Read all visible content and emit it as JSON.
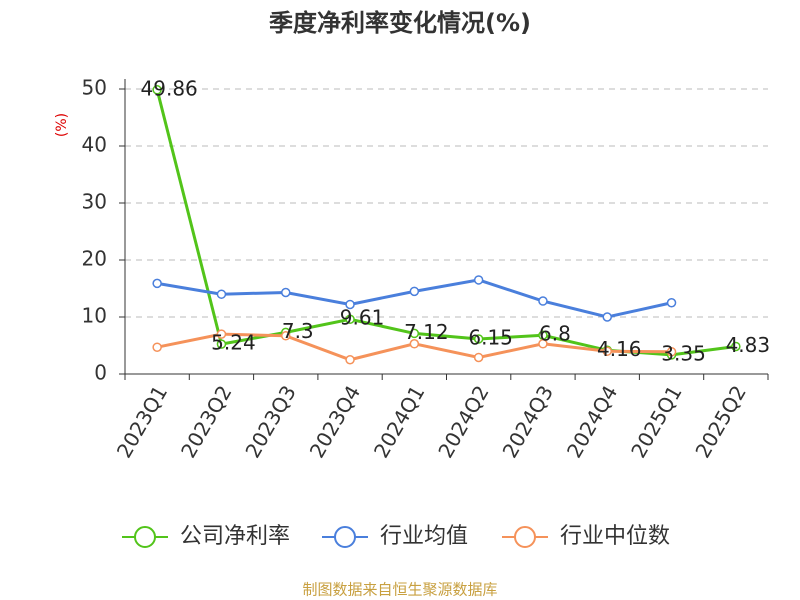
{
  "chart_data": {
    "type": "line",
    "title": "季度净利率变化情况(%)",
    "y_label": "(%)",
    "categories": [
      "2023Q1",
      "2023Q2",
      "2023Q3",
      "2023Q4",
      "2024Q1",
      "2024Q2",
      "2024Q3",
      "2024Q4",
      "2025Q1",
      "2025Q2"
    ],
    "series": [
      {
        "name": "公司净利率",
        "color": "#52c41a",
        "values": [
          49.86,
          5.24,
          7.3,
          9.61,
          7.12,
          6.15,
          6.8,
          4.16,
          3.35,
          4.83
        ],
        "labels": true
      },
      {
        "name": "行业均值",
        "color": "#4a7fdc",
        "values": [
          15.9,
          14.0,
          14.3,
          12.2,
          14.5,
          16.5,
          12.8,
          10.0,
          12.5,
          null
        ]
      },
      {
        "name": "行业中位数",
        "color": "#f5925a",
        "values": [
          4.7,
          7.0,
          6.7,
          2.5,
          5.3,
          2.9,
          5.3,
          4.0,
          3.9,
          null
        ]
      }
    ],
    "ylim": [
      0,
      50
    ],
    "yticks": [
      0,
      10,
      20,
      30,
      40,
      50
    ],
    "grid": true,
    "source": "制图数据来自恒生聚源数据库"
  }
}
